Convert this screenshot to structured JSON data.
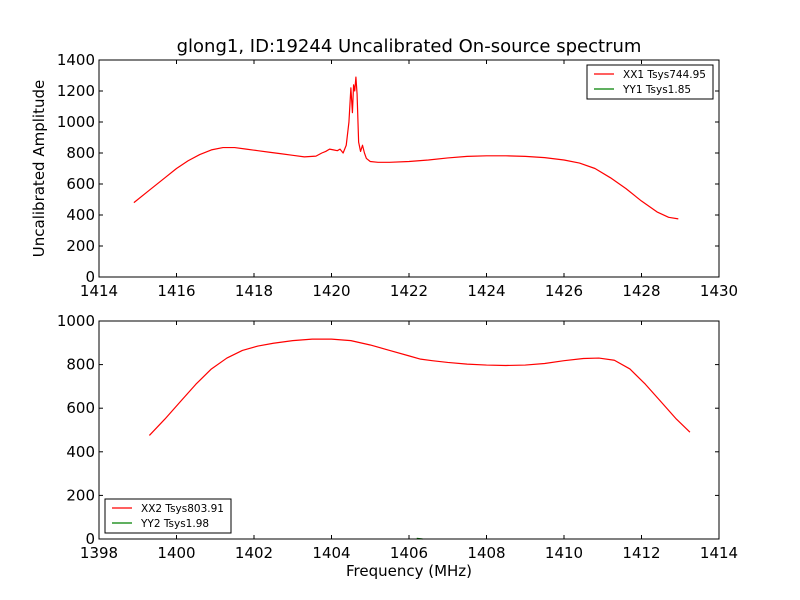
{
  "chart_data": [
    {
      "type": "line",
      "title": "glong1, ID:19244 Uncalibrated On-source spectrum",
      "xlabel": "",
      "ylabel": "Uncalibrated Amplitude",
      "xlim": [
        1414,
        1430
      ],
      "ylim": [
        0,
        1400
      ],
      "xticks": [
        1414,
        1416,
        1418,
        1420,
        1422,
        1424,
        1426,
        1428,
        1430
      ],
      "yticks": [
        0,
        200,
        400,
        600,
        800,
        1000,
        1200,
        1400
      ],
      "grid": false,
      "legend": "top-right",
      "series": [
        {
          "name": "XX1 Tsys744.95",
          "color": "#ff0000",
          "x": [
            1414.9,
            1415.3,
            1415.7,
            1416.0,
            1416.3,
            1416.6,
            1416.9,
            1417.2,
            1417.5,
            1417.8,
            1418.1,
            1418.4,
            1418.7,
            1419.0,
            1419.3,
            1419.6,
            1419.75,
            1419.85,
            1419.95,
            1420.05,
            1420.15,
            1420.22,
            1420.3,
            1420.38,
            1420.45,
            1420.5,
            1420.54,
            1420.57,
            1420.6,
            1420.63,
            1420.66,
            1420.7,
            1420.75,
            1420.8,
            1420.85,
            1420.9,
            1421.0,
            1421.2,
            1421.5,
            1422.0,
            1422.5,
            1423.0,
            1423.5,
            1424.0,
            1424.5,
            1425.0,
            1425.5,
            1426.0,
            1426.4,
            1426.8,
            1427.2,
            1427.6,
            1428.0,
            1428.4,
            1428.7,
            1428.95
          ],
          "values": [
            480,
            560,
            640,
            700,
            750,
            790,
            820,
            835,
            835,
            825,
            815,
            805,
            795,
            785,
            775,
            780,
            800,
            810,
            825,
            820,
            815,
            825,
            800,
            850,
            1000,
            1220,
            1060,
            1240,
            1200,
            1290,
            1180,
            870,
            810,
            850,
            800,
            765,
            745,
            740,
            740,
            745,
            755,
            768,
            778,
            782,
            782,
            778,
            770,
            755,
            735,
            700,
            640,
            570,
            490,
            420,
            385,
            375
          ]
        },
        {
          "name": "YY1 Tsys1.85",
          "color": "#008000",
          "x": [],
          "values": []
        }
      ]
    },
    {
      "type": "line",
      "title": "",
      "xlabel": "Frequency (MHz)",
      "ylabel": "",
      "xlim": [
        1398,
        1414
      ],
      "ylim": [
        0,
        1000
      ],
      "xticks": [
        1398,
        1400,
        1402,
        1404,
        1406,
        1408,
        1410,
        1412,
        1414
      ],
      "yticks": [
        0,
        200,
        400,
        600,
        800,
        1000
      ],
      "grid": false,
      "legend": "bottom-left",
      "series": [
        {
          "name": "XX2 Tsys803.91",
          "color": "#ff0000",
          "x": [
            1399.3,
            1399.7,
            1400.1,
            1400.5,
            1400.9,
            1401.3,
            1401.7,
            1402.1,
            1402.5,
            1403.0,
            1403.5,
            1404.0,
            1404.5,
            1405.0,
            1405.5,
            1406.0,
            1406.3,
            1406.6,
            1407.0,
            1407.5,
            1408.0,
            1408.5,
            1409.0,
            1409.5,
            1410.0,
            1410.5,
            1410.9,
            1411.3,
            1411.7,
            1412.1,
            1412.5,
            1412.9,
            1413.25
          ],
          "values": [
            475,
            550,
            630,
            710,
            780,
            830,
            865,
            885,
            898,
            910,
            917,
            917,
            910,
            890,
            865,
            840,
            825,
            818,
            810,
            802,
            798,
            796,
            798,
            805,
            818,
            828,
            830,
            820,
            780,
            710,
            630,
            550,
            490
          ]
        },
        {
          "name": "YY2 Tsys1.98",
          "color": "#008000",
          "x": [
            1406.2,
            1406.35
          ],
          "values": [
            3,
            0
          ]
        }
      ]
    }
  ]
}
